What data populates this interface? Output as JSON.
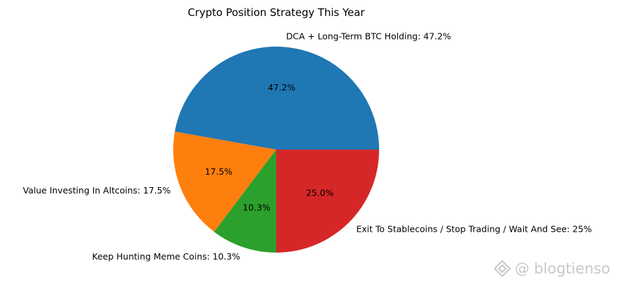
{
  "chart_data": {
    "type": "pie",
    "title": "Crypto Position Strategy This Year",
    "start_angle_deg": 0,
    "direction": "counterclockwise",
    "slices": [
      {
        "label": "DCA + Long-Term BTC Holding: 47.2%",
        "value": 47.2,
        "pct_label": "47.2%",
        "color": "#1f77b4"
      },
      {
        "label": "Value Investing In Altcoins: 17.5%",
        "value": 17.5,
        "pct_label": "17.5%",
        "color": "#ff7f0e"
      },
      {
        "label": "Keep Hunting Meme Coins: 10.3%",
        "value": 10.3,
        "pct_label": "10.3%",
        "color": "#2ca02c"
      },
      {
        "label": "Exit To Stablecoins / Stop Trading / Wait And See: 25%",
        "value": 25.0,
        "pct_label": "25.0%",
        "color": "#d62728"
      }
    ]
  },
  "watermark": {
    "text": "@ blogtienso",
    "icon": "diamond-logo-icon"
  }
}
